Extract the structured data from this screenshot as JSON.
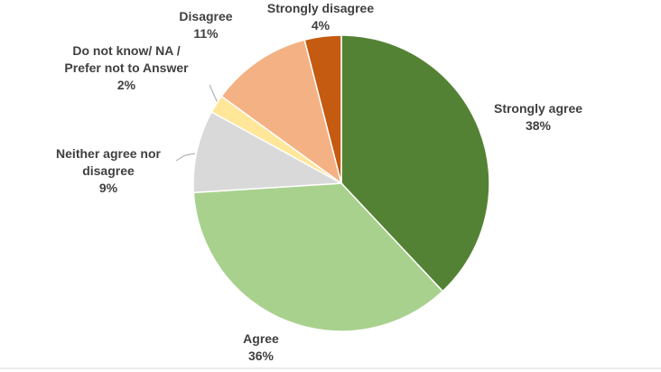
{
  "chart_data": {
    "type": "pie",
    "categories": [
      "Strongly agree",
      "Agree",
      "Neither agree nor disagree",
      "Do not know/ NA / Prefer not to Answer",
      "Disagree",
      "Strongly disagree"
    ],
    "values": [
      38,
      36,
      9,
      2,
      11,
      4
    ],
    "value_labels": [
      "38%",
      "36%",
      "9%",
      "2%",
      "11%",
      "4%"
    ],
    "colors": [
      "#548235",
      "#a9d18e",
      "#d9d9d9",
      "#ffe699",
      "#f4b183",
      "#c55a11"
    ]
  }
}
